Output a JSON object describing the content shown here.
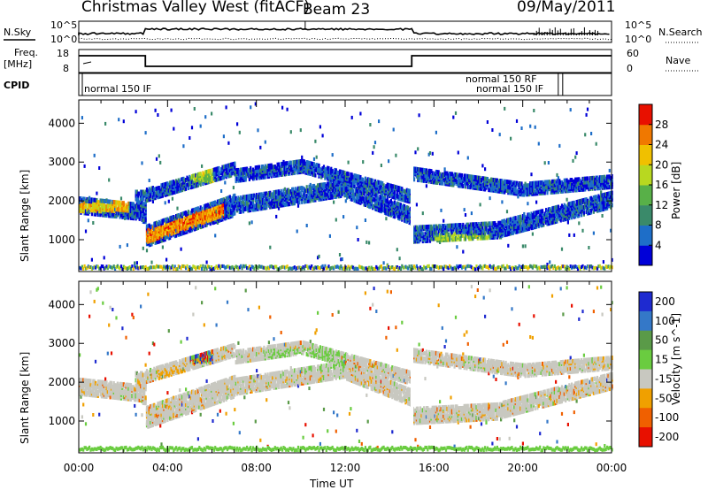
{
  "header": {
    "title": "Christmas Valley West (fitACF)",
    "beam": "Beam 23",
    "date": "09/May/2011"
  },
  "side_labels": {
    "nsky": "N.Sky",
    "freq": "Freq.",
    "freq_unit": "[MHz]",
    "cpid": "CPID",
    "nsearch": "N.Search",
    "nave": "Nave"
  },
  "top_axes": {
    "noise_left_hi": "10^5",
    "noise_left_lo": "10^0",
    "noise_right_hi": "10^5",
    "noise_right_lo": "10^0",
    "freq_hi": "18",
    "freq_lo": "8",
    "nave_hi": "60",
    "nave_lo": "0"
  },
  "cpid_labels": [
    "normal 150 IF",
    "normal 150 RF",
    "normal 150 IF"
  ],
  "colors": {
    "power_scale": [
      "#0000d8",
      "#1e6ec8",
      "#3a8a6a",
      "#58b048",
      "#b8d820",
      "#f0c000",
      "#f07800",
      "#e81000"
    ],
    "velocity_scale": [
      "#1e2ad0",
      "#3478c8",
      "#5a9a48",
      "#6acc40",
      "#c8c8c0",
      "#f0a000",
      "#f06000",
      "#e81000"
    ]
  },
  "chart_data": [
    {
      "type": "heatmap",
      "name_printed": "Power [dB]",
      "xlabel": "Time UT",
      "ylabel": "Slant Range [km]",
      "x_ticks": [
        "00:00",
        "04:00",
        "08:00",
        "12:00",
        "16:00",
        "20:00",
        "00:00"
      ],
      "y_ticks": [
        "1000",
        "2000",
        "3000",
        "4000"
      ],
      "ylim": [
        180,
        4600
      ],
      "colorbar_label": "Power [dB]",
      "colorbar_ticks": [
        "4",
        "8",
        "12",
        "16",
        "20",
        "24",
        "28"
      ],
      "colorbar_range": [
        0,
        32
      ]
    },
    {
      "type": "heatmap",
      "xlabel": "Time UT",
      "ylabel": "Slant Range [km]",
      "x_ticks": [
        "00:00",
        "04:00",
        "08:00",
        "12:00",
        "16:00",
        "20:00",
        "00:00"
      ],
      "y_ticks": [
        "1000",
        "2000",
        "3000",
        "4000"
      ],
      "ylim": [
        180,
        4600
      ],
      "colorbar_label": "Velocity [m s^-1]",
      "colorbar_ticks": [
        "200",
        "100",
        "50",
        "15",
        "-15",
        "-50",
        "-100",
        "-200"
      ]
    }
  ]
}
